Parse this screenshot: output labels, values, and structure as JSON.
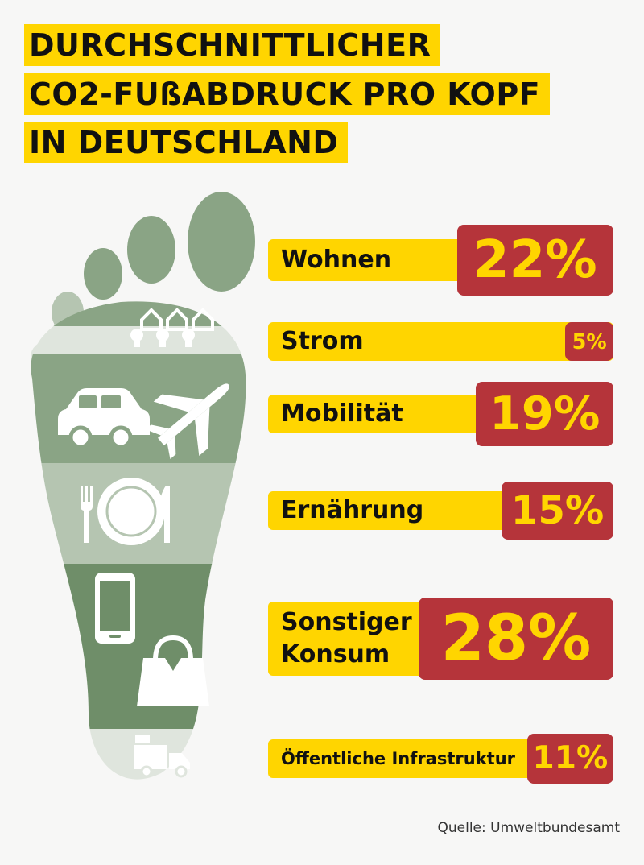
{
  "title": {
    "line1": "DURCHSCHNITTLICHER",
    "line2": "CO2-FUßABDRUCK PRO KOPF",
    "line3": "IN DEUTSCHLAND"
  },
  "icons": [
    "house-icon",
    "lightbulb-icon",
    "car-icon",
    "airplane-icon",
    "fork-icon",
    "plate-icon",
    "knife-icon",
    "smartphone-icon",
    "shopping-bag-icon",
    "truck-icon"
  ],
  "colors": {
    "yellow": "#ffd500",
    "red": "#b5343a",
    "foot_light": "#b5c5b1",
    "foot_mid": "#8aa485",
    "foot_dark": "#6f8e69",
    "foot_pale": "#dfe5dd"
  },
  "chart_data": {
    "type": "bar",
    "categories": [
      "Wohnen",
      "Strom",
      "Mobilität",
      "Ernährung",
      "Sonstiger Konsum",
      "Öffentliche Infrastruktur"
    ],
    "values": [
      22,
      5,
      19,
      15,
      28,
      11
    ],
    "value_labels": [
      "22%",
      "5%",
      "19%",
      "15%",
      "28%",
      "11%"
    ],
    "label_lines": [
      [
        "Wohnen"
      ],
      [
        "Strom"
      ],
      [
        "Mobilität"
      ],
      [
        "Ernährung"
      ],
      [
        "Sonstiger",
        "Konsum"
      ],
      [
        "Öffentliche Infrastruktur"
      ]
    ],
    "unit": "%"
  },
  "source": "Quelle: Umweltbundesamt"
}
